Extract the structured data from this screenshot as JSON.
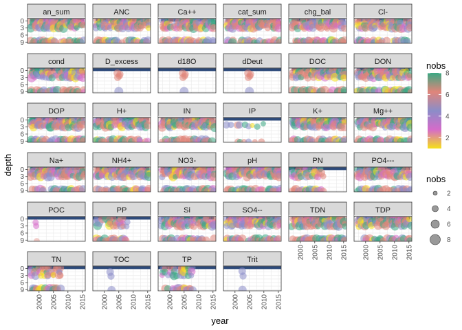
{
  "chart_data": {
    "type": "scatter",
    "layout": "faceted small multiples",
    "xlabel": "year",
    "ylabel": "depth",
    "xlim": [
      1996,
      2016
    ],
    "ylim": [
      9.5,
      -1
    ],
    "x_ticks": [
      2000,
      2005,
      2010,
      2015
    ],
    "y_ticks": [
      0,
      3,
      6,
      9
    ],
    "grid": true,
    "facets": [
      {
        "label": "an_sum",
        "pattern": "full"
      },
      {
        "label": "ANC",
        "pattern": "full"
      },
      {
        "label": "Ca++",
        "pattern": "full"
      },
      {
        "label": "cat_sum",
        "pattern": "full"
      },
      {
        "label": "chg_bal",
        "pattern": "full"
      },
      {
        "label": "Cl-",
        "pattern": "full"
      },
      {
        "label": "cond",
        "pattern": "full"
      },
      {
        "label": "D_excess",
        "pattern": "sparse_iso"
      },
      {
        "label": "d18O",
        "pattern": "sparse_iso"
      },
      {
        "label": "dDeut",
        "pattern": "sparse_iso"
      },
      {
        "label": "DOC",
        "pattern": "full"
      },
      {
        "label": "DON",
        "pattern": "full"
      },
      {
        "label": "DOP",
        "pattern": "full"
      },
      {
        "label": "H+",
        "pattern": "full"
      },
      {
        "label": "IN",
        "pattern": "full"
      },
      {
        "label": "IP",
        "pattern": "ip"
      },
      {
        "label": "K+",
        "pattern": "full"
      },
      {
        "label": "Mg++",
        "pattern": "full"
      },
      {
        "label": "Na+",
        "pattern": "full"
      },
      {
        "label": "NH4+",
        "pattern": "full"
      },
      {
        "label": "NO3-",
        "pattern": "full"
      },
      {
        "label": "pH",
        "pattern": "full"
      },
      {
        "label": "PN",
        "pattern": "early"
      },
      {
        "label": "PO4---",
        "pattern": "full"
      },
      {
        "label": "POC",
        "pattern": "poc"
      },
      {
        "label": "PP",
        "pattern": "early"
      },
      {
        "label": "Si",
        "pattern": "full"
      },
      {
        "label": "SO4--",
        "pattern": "full"
      },
      {
        "label": "TDN",
        "pattern": "full"
      },
      {
        "label": "TDP",
        "pattern": "full"
      },
      {
        "label": "TN",
        "pattern": "early"
      },
      {
        "label": "TOC",
        "pattern": "toc"
      },
      {
        "label": "TP",
        "pattern": "early"
      },
      {
        "label": "Trit",
        "pattern": "trit"
      }
    ],
    "legend": {
      "placement": "right",
      "color": {
        "title": "nobs",
        "type": "colorbar",
        "range": [
          1,
          8
        ],
        "ticks": [
          2,
          4,
          6,
          8
        ],
        "colors": [
          "#f5e01a",
          "#d56bc9",
          "#8b8dc8",
          "#e0857a",
          "#3aa883"
        ]
      },
      "size": {
        "title": "nobs",
        "ticks": [
          2,
          4,
          6,
          8
        ]
      }
    },
    "colors": {
      "strip_bg": "#d9d9d9",
      "panel_border": "#333333",
      "grid": "#ebebeb",
      "top_band": "#2d4a7a"
    }
  }
}
